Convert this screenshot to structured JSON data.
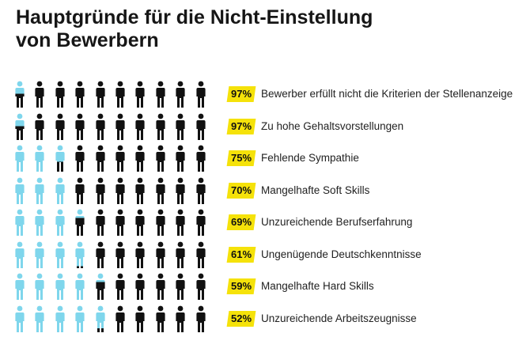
{
  "title_line1": "Hauptgründe für die Nicht-Einstellung",
  "title_line2": "von Bewerbern",
  "colors": {
    "highlight": "#f5e20a",
    "filled": "#111111",
    "unfilled": "#7fd6ec"
  },
  "icons_per_row": 10,
  "chart_data": {
    "type": "bar",
    "title": "Hauptgründe für die Nicht-Einstellung von Bewerbern",
    "unit": "%",
    "categories": [
      "Bewerber erfüllt nicht die Kriterien der Stellenanzeige",
      "Zu hohe Gehaltsvorstellungen",
      "Fehlende Sympathie",
      "Mangelhafte Soft Skills",
      "Unzureichende Berufserfahrung",
      "Ungenügende Deutschkenntnisse",
      "Mangelhafte Hard Skills",
      "Unzureichende Arbeitszeugnisse"
    ],
    "values": [
      97,
      97,
      75,
      70,
      69,
      61,
      59,
      52
    ],
    "value_labels": [
      "97%",
      "97%",
      "75%",
      "70%",
      "69%",
      "61%",
      "59%",
      "52%"
    ]
  }
}
